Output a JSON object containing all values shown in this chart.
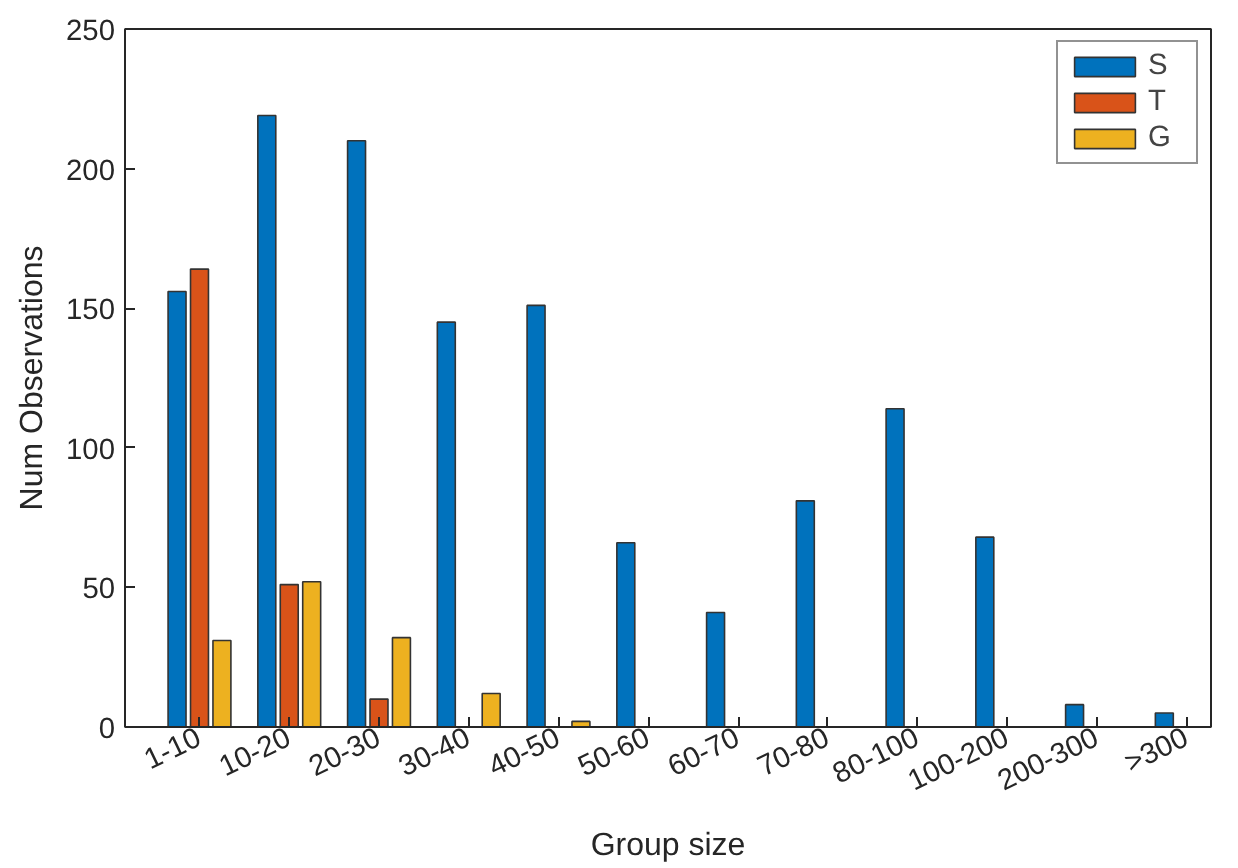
{
  "chart_data": {
    "type": "bar",
    "xlabel": "Group size",
    "ylabel": "Num Observations",
    "categories": [
      "1-10",
      "10-20",
      "20-30",
      "30-40",
      "40-50",
      "50-60",
      "60-70",
      "70-80",
      "80-100",
      "100-200",
      "200-300",
      ">300"
    ],
    "series": [
      {
        "name": "S",
        "color": "#0072bd",
        "values": [
          156,
          219,
          210,
          145,
          151,
          66,
          41,
          81,
          114,
          68,
          8,
          5
        ]
      },
      {
        "name": "T",
        "color": "#d95319",
        "values": [
          164,
          51,
          10,
          null,
          null,
          null,
          null,
          null,
          null,
          null,
          null,
          null
        ]
      },
      {
        "name": "G",
        "color": "#edb120",
        "values": [
          31,
          52,
          32,
          12,
          2,
          null,
          null,
          null,
          null,
          null,
          null,
          null
        ]
      }
    ],
    "ylim": [
      0,
      250
    ],
    "yticks": [
      0,
      50,
      100,
      150,
      200,
      250
    ],
    "grid": false,
    "legend": "top right"
  }
}
